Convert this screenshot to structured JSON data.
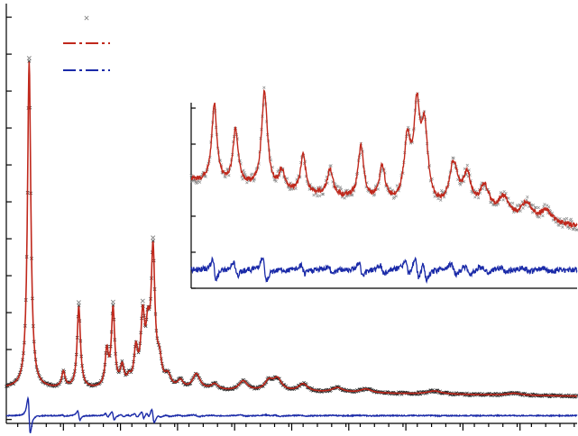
{
  "chart_data": {
    "type": "line",
    "title": "",
    "xlabel": "",
    "ylabel": "",
    "grid": false,
    "legend": {
      "placement": "top-left",
      "entries": [
        {
          "series": "observed",
          "marker": "x",
          "color": "#8c8c8c",
          "label": ""
        },
        {
          "series": "calculated",
          "style": "dash-dot",
          "color": "#c0281c",
          "label": ""
        },
        {
          "series": "difference",
          "style": "dash-dot",
          "color": "#1a2aa8",
          "label": ""
        }
      ]
    },
    "colors": {
      "observed": "#8c8c8c",
      "observed_dark": "#222222",
      "calculated": "#c0281c",
      "difference": "#1a2aa8",
      "axis": "#000000"
    },
    "main": {
      "xlim": [
        0,
        100
      ],
      "ylim": [
        -8,
        100
      ],
      "x_major_ticks": [
        10,
        20,
        30,
        40,
        50,
        60,
        70,
        80,
        90
      ],
      "y_major_ticks": [
        -7,
        2,
        11,
        20.5,
        30,
        39.5,
        49,
        58.5,
        68,
        77.5,
        87,
        96.5
      ],
      "baseline": 1,
      "difference_offset": -6,
      "peaks": [
        {
          "x": 4.0,
          "h": 84,
          "w": 0.35
        },
        {
          "x": 10.0,
          "h": 4,
          "w": 0.35
        },
        {
          "x": 12.7,
          "h": 21,
          "w": 0.35
        },
        {
          "x": 17.6,
          "h": 9,
          "w": 0.35
        },
        {
          "x": 18.7,
          "h": 20,
          "w": 0.35
        },
        {
          "x": 20.3,
          "h": 5,
          "w": 0.4
        },
        {
          "x": 21.5,
          "h": 2,
          "w": 0.4
        },
        {
          "x": 22.7,
          "h": 9,
          "w": 0.4
        },
        {
          "x": 23.9,
          "h": 17,
          "w": 0.4
        },
        {
          "x": 24.8,
          "h": 12,
          "w": 0.4
        },
        {
          "x": 25.7,
          "h": 34,
          "w": 0.4
        },
        {
          "x": 26.8,
          "h": 6,
          "w": 0.5
        },
        {
          "x": 28.3,
          "h": 3,
          "w": 0.6
        },
        {
          "x": 30.5,
          "h": 2,
          "w": 0.6
        },
        {
          "x": 33.3,
          "h": 4,
          "w": 0.8
        },
        {
          "x": 36.5,
          "h": 1.5,
          "w": 0.8
        },
        {
          "x": 41.5,
          "h": 2.5,
          "w": 0.9
        },
        {
          "x": 46.0,
          "h": 2.5,
          "w": 0.9
        },
        {
          "x": 47.5,
          "h": 3,
          "w": 0.9
        },
        {
          "x": 52.0,
          "h": 2,
          "w": 1.0
        },
        {
          "x": 58.0,
          "h": 1.2,
          "w": 1.2
        },
        {
          "x": 63.0,
          "h": 1.0,
          "w": 1.2
        },
        {
          "x": 75.0,
          "h": 0.8,
          "w": 1.5
        },
        {
          "x": 89.0,
          "h": 0.5,
          "w": 1.5
        }
      ]
    },
    "inset": {
      "xlim": [
        0,
        100
      ],
      "ylim": [
        0,
        100
      ],
      "baseline": 20,
      "difference_offset": 0,
      "peaks": [
        {
          "x": 6.0,
          "h": 42,
          "w": 0.8
        },
        {
          "x": 11.5,
          "h": 30,
          "w": 0.8
        },
        {
          "x": 19.0,
          "h": 52,
          "w": 0.9
        },
        {
          "x": 23.5,
          "h": 10,
          "w": 0.8
        },
        {
          "x": 29.0,
          "h": 20,
          "w": 0.8
        },
        {
          "x": 36.0,
          "h": 14,
          "w": 0.9
        },
        {
          "x": 44.0,
          "h": 28,
          "w": 0.9
        },
        {
          "x": 49.5,
          "h": 18,
          "w": 0.9
        },
        {
          "x": 56.0,
          "h": 32,
          "w": 1.0
        },
        {
          "x": 58.5,
          "h": 48,
          "w": 1.0
        },
        {
          "x": 60.5,
          "h": 38,
          "w": 1.0
        },
        {
          "x": 68.0,
          "h": 24,
          "w": 1.3
        },
        {
          "x": 71.5,
          "h": 18,
          "w": 1.3
        },
        {
          "x": 76.0,
          "h": 14,
          "w": 1.5
        },
        {
          "x": 81.0,
          "h": 10,
          "w": 1.5
        },
        {
          "x": 87.0,
          "h": 9,
          "w": 1.6
        },
        {
          "x": 92.0,
          "h": 6,
          "w": 1.8
        }
      ]
    }
  }
}
